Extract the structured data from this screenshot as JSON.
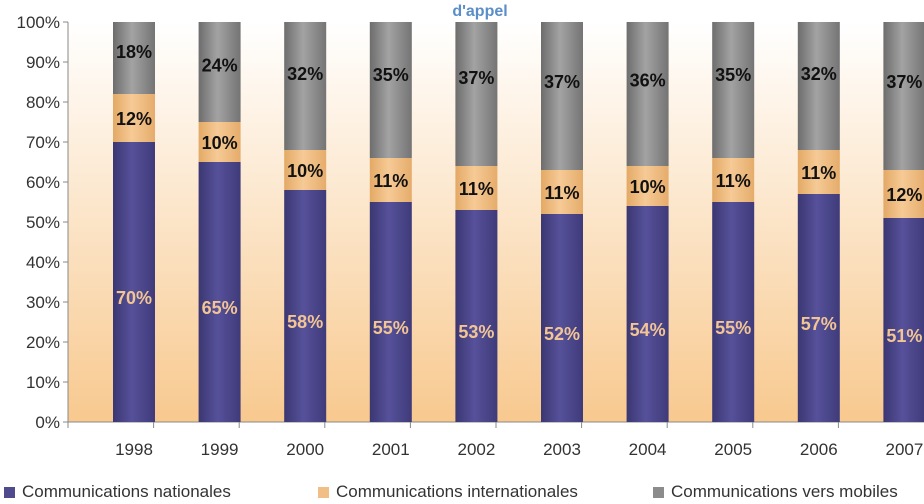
{
  "chart_data": {
    "type": "bar",
    "stacked": true,
    "title": "d'appel",
    "categories": [
      "1998",
      "1999",
      "2000",
      "2001",
      "2002",
      "2003",
      "2004",
      "2005",
      "2006",
      "2007"
    ],
    "series": [
      {
        "name": "Communications nationales",
        "values": [
          70,
          65,
          58,
          55,
          53,
          52,
          54,
          55,
          57,
          51
        ],
        "labels": [
          "70%",
          "65%",
          "58%",
          "55%",
          "53%",
          "52%",
          "54%",
          "55%",
          "57%",
          "51%"
        ],
        "color": "#4f4b8c"
      },
      {
        "name": "Communications internationales",
        "values": [
          12,
          10,
          10,
          11,
          11,
          11,
          10,
          11,
          11,
          12
        ],
        "labels": [
          "12%",
          "10%",
          "10%",
          "11%",
          "11%",
          "11%",
          "10%",
          "11%",
          "11%",
          "12%"
        ],
        "color": "#f1be86"
      },
      {
        "name": "Communications vers mobiles",
        "values": [
          18,
          24,
          32,
          35,
          37,
          37,
          36,
          35,
          32,
          37
        ],
        "labels": [
          "18%",
          "24%",
          "32%",
          "35%",
          "37%",
          "37%",
          "36%",
          "35%",
          "32%",
          "37%"
        ],
        "color": "#8c8c8c"
      }
    ],
    "yticks": [
      "0%",
      "10%",
      "20%",
      "30%",
      "40%",
      "50%",
      "60%",
      "70%",
      "80%",
      "90%",
      "100%"
    ],
    "ylim": [
      0,
      100
    ],
    "legend": "bottom",
    "grid": false,
    "colors": {
      "background_top": "#ffffff",
      "background_bottom": "#f8c98f",
      "title": "#5a8ec6",
      "national_label": "#f3c594",
      "other_label": "#111111"
    }
  }
}
